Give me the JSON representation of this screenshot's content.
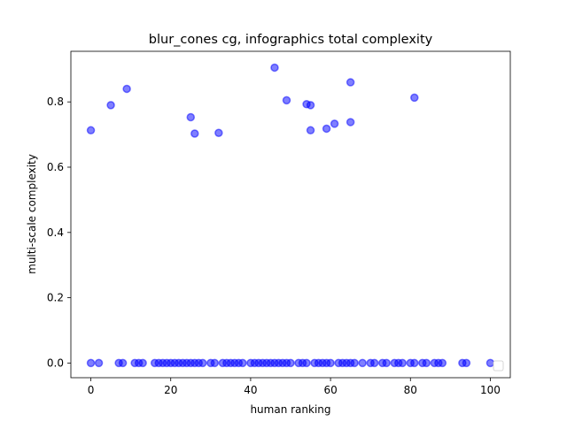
{
  "chart_data": {
    "type": "scatter",
    "title": "blur_cones cg, infographics total complexity",
    "xlabel": "human ranking",
    "ylabel": "multi-scale complexity",
    "xlim": [
      -5,
      105
    ],
    "ylim": [
      -0.045,
      0.955
    ],
    "xticks": [
      0,
      20,
      40,
      60,
      80,
      100
    ],
    "xtick_labels": [
      "0",
      "20",
      "40",
      "60",
      "80",
      "100"
    ],
    "yticks": [
      0.0,
      0.2,
      0.4,
      0.6,
      0.8
    ],
    "ytick_labels": [
      "0.0",
      "0.2",
      "0.4",
      "0.6",
      "0.8"
    ],
    "grid": false,
    "legend": "lower-right",
    "marker_color": "#0000ff",
    "series": [
      {
        "x": [
          0,
          5,
          9,
          25,
          26,
          32,
          46,
          49,
          54,
          55,
          55,
          59,
          61,
          65,
          65,
          81,
          0,
          2,
          7,
          8,
          11,
          12,
          13,
          16,
          17,
          18,
          19,
          20,
          21,
          22,
          23,
          24,
          25,
          26,
          27,
          28,
          30,
          31,
          33,
          34,
          35,
          36,
          37,
          38,
          40,
          41,
          42,
          43,
          44,
          45,
          46,
          47,
          48,
          49,
          50,
          52,
          53,
          54,
          56,
          57,
          58,
          59,
          60,
          62,
          63,
          64,
          65,
          66,
          68,
          70,
          71,
          73,
          74,
          76,
          77,
          78,
          80,
          81,
          83,
          84,
          86,
          87,
          88,
          93,
          94,
          100
        ],
        "y": [
          0.713,
          0.79,
          0.84,
          0.753,
          0.703,
          0.705,
          0.905,
          0.805,
          0.793,
          0.79,
          0.713,
          0.718,
          0.733,
          0.86,
          0.738,
          0.813,
          0,
          0,
          0,
          0,
          0,
          0,
          0,
          0,
          0,
          0,
          0,
          0,
          0,
          0,
          0,
          0,
          0,
          0,
          0,
          0,
          0,
          0,
          0,
          0,
          0,
          0,
          0,
          0,
          0,
          0,
          0,
          0,
          0,
          0,
          0,
          0,
          0,
          0,
          0,
          0,
          0,
          0,
          0,
          0,
          0,
          0,
          0,
          0,
          0,
          0,
          0,
          0,
          0,
          0,
          0,
          0,
          0,
          0,
          0,
          0,
          0,
          0,
          0,
          0,
          0,
          0,
          0,
          0,
          0,
          0
        ]
      }
    ]
  }
}
